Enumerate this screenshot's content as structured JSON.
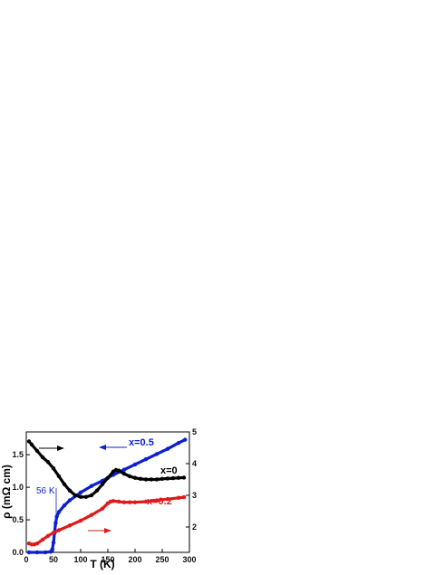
{
  "chart_data": {
    "type": "line",
    "xlabel": "T (K)",
    "ylabel": "ρ (mΩ cm)",
    "xlim": [
      0,
      300
    ],
    "ylim_left": [
      0,
      1.85
    ],
    "ylim_right": [
      1.2,
      5.0
    ],
    "x_ticks": [
      0,
      50,
      100,
      150,
      200,
      250,
      300
    ],
    "y_left_ticks": [
      0.0,
      0.5,
      1.0,
      1.5
    ],
    "y_right_ticks": [
      2,
      3,
      4,
      5
    ],
    "grid": false,
    "series": [
      {
        "name": "x=0.5",
        "axis": "left",
        "color": "#0b1fd1",
        "x": [
          5,
          20,
          35,
          45,
          48,
          50,
          52,
          54,
          56,
          60,
          70,
          80,
          100,
          120,
          140,
          160,
          180,
          200,
          220,
          240,
          260,
          280,
          292
        ],
        "y": [
          0,
          0,
          0,
          0.01,
          0.05,
          0.15,
          0.3,
          0.45,
          0.55,
          0.62,
          0.72,
          0.8,
          0.92,
          1.02,
          1.1,
          1.19,
          1.27,
          1.35,
          1.43,
          1.51,
          1.59,
          1.68,
          1.73
        ]
      },
      {
        "name": "x=0",
        "axis": "right",
        "color": "#000000",
        "x": [
          5,
          10,
          20,
          30,
          40,
          50,
          60,
          70,
          80,
          90,
          100,
          110,
          120,
          130,
          140,
          150,
          160,
          165,
          170,
          180,
          190,
          200,
          210,
          220,
          230,
          240,
          250,
          260,
          270,
          280,
          290
        ],
        "y": [
          4.7,
          4.6,
          4.4,
          4.2,
          4.05,
          3.85,
          3.6,
          3.35,
          3.15,
          3.0,
          2.95,
          2.95,
          3.0,
          3.15,
          3.35,
          3.55,
          3.75,
          3.8,
          3.78,
          3.68,
          3.6,
          3.55,
          3.52,
          3.5,
          3.5,
          3.5,
          3.52,
          3.53,
          3.54,
          3.55,
          3.56
        ]
      },
      {
        "name": "x=0.2",
        "axis": "right",
        "color": "#e01a1a",
        "x": [
          5,
          10,
          15,
          20,
          30,
          40,
          50,
          60,
          80,
          100,
          120,
          140,
          150,
          155,
          160,
          170,
          180,
          190,
          200,
          220,
          240,
          260,
          280,
          290
        ],
        "y": [
          1.48,
          1.45,
          1.45,
          1.48,
          1.6,
          1.72,
          1.82,
          1.9,
          2.05,
          2.2,
          2.38,
          2.58,
          2.75,
          2.8,
          2.82,
          2.8,
          2.78,
          2.78,
          2.78,
          2.8,
          2.84,
          2.88,
          2.92,
          2.94
        ]
      }
    ],
    "annotations": [
      {
        "text": "56 K",
        "color": "#0b1fd1",
        "x": 56,
        "y": 0.55
      },
      {
        "text": "x=0.5",
        "color": "#0b1fd1"
      },
      {
        "text": "x=0",
        "color": "#000000"
      },
      {
        "text": "x=0.2",
        "color": "#e01a1a"
      }
    ],
    "arrows": [
      {
        "series": "x=0",
        "direction": "right",
        "color": "#000000"
      },
      {
        "series": "x=0.5",
        "direction": "left",
        "color": "#0b1fd1"
      },
      {
        "series": "x=0.2",
        "direction": "right",
        "color": "#e01a1a"
      }
    ]
  }
}
